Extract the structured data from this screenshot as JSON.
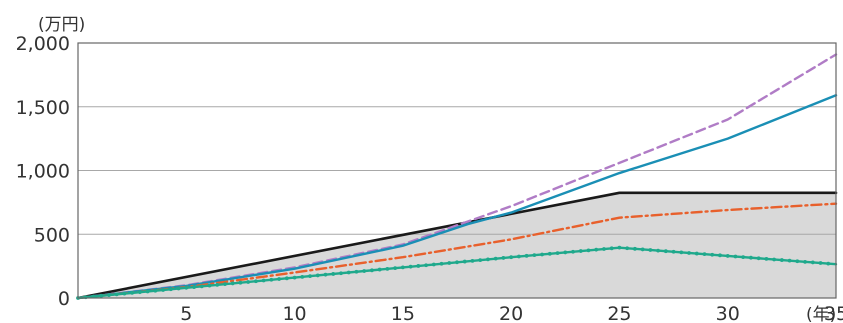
{
  "chart_data": {
    "type": "line",
    "y_unit_label": "(万円)",
    "x_unit_label": "(年)",
    "x_ticks": [
      5,
      10,
      15,
      20,
      25,
      30,
      35
    ],
    "y_ticks": [
      {
        "value": 0,
        "label": "0"
      },
      {
        "value": 500,
        "label": "500"
      },
      {
        "value": 1000,
        "label": "1,000"
      },
      {
        "value": 1500,
        "label": "1,500"
      },
      {
        "value": 2000,
        "label": "2,000"
      }
    ],
    "xlim": [
      0,
      35
    ],
    "ylim": [
      0,
      2000
    ],
    "grid": "horizontal",
    "series": [
      {
        "style": "area",
        "color": "#1a1a1a",
        "fill": "#d9d9d9",
        "x": [
          0,
          25,
          35
        ],
        "y": [
          0,
          825,
          825
        ]
      },
      {
        "style": "dashed",
        "color": "#b07cc6",
        "x": [
          0,
          5,
          10,
          15,
          18,
          20,
          25,
          30,
          35
        ],
        "y": [
          0,
          100,
          240,
          420,
          600,
          720,
          1060,
          1400,
          1910
        ]
      },
      {
        "style": "solid",
        "color": "#1a8fb5",
        "x": [
          0,
          5,
          10,
          15,
          18,
          20,
          25,
          30,
          35
        ],
        "y": [
          0,
          95,
          230,
          410,
          580,
          670,
          980,
          1250,
          1590
        ]
      },
      {
        "style": "dashdot",
        "color": "#e8602c",
        "x": [
          0,
          5,
          10,
          15,
          20,
          25,
          30,
          35
        ],
        "y": [
          0,
          85,
          200,
          320,
          460,
          630,
          690,
          740
        ]
      },
      {
        "style": "dotted-line",
        "color": "#1fa98c",
        "x": [
          0,
          5,
          10,
          15,
          20,
          25,
          30,
          35
        ],
        "y": [
          0,
          80,
          160,
          240,
          320,
          395,
          330,
          265
        ]
      }
    ]
  }
}
